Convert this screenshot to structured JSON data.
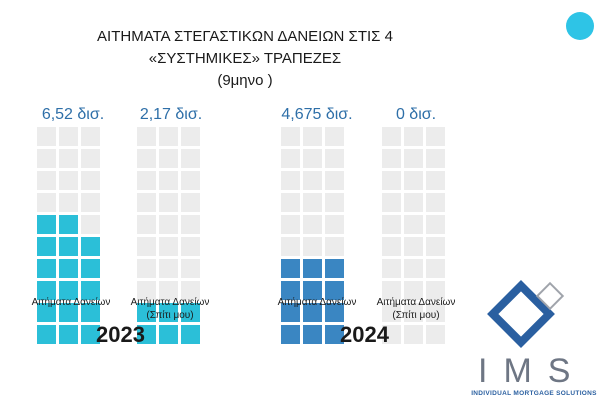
{
  "header": {
    "title_line1": "ΑΙΤΗΜΑΤΑ ΣΤΕΓΑΣΤΙΚΩΝ ΔΑΝΕΙΩΝ ΣΤΙΣ 4",
    "title_line2": "«ΣΥΣΤΗΜΙΚΕΣ» ΤΡΑΠΕΖΕΣ",
    "title_line3": "(9μηνο )"
  },
  "colors": {
    "accent_dot": "#2ec4e6",
    "cyan": "#2bbfd8",
    "blue": "#3a86c2",
    "empty": "#ececec",
    "value_text": "#2e6fa8"
  },
  "chart_data": {
    "type": "waffle",
    "unit": "δισ.",
    "groups": [
      {
        "year": "2023",
        "bars": [
          {
            "label": "6,52 δισ.",
            "value": 6.52,
            "category": [
              "Αιτήματα Δανείων"
            ],
            "color": "#2bbfd8"
          },
          {
            "label": "2,17 δισ.",
            "value": 2.17,
            "category": [
              "Αιτήματα Δανείων",
              "(Σπίτι μου)"
            ],
            "color": "#2bbfd8"
          }
        ]
      },
      {
        "year": "2024",
        "bars": [
          {
            "label": "4,675 δισ.",
            "value": 4.675,
            "category": [
              "Αιτήματα Δανείων"
            ],
            "color": "#3a86c2"
          },
          {
            "label": "0 δισ.",
            "value": 0,
            "category": [
              "Αιτήματα Δανείων",
              "(Σπίτι μου)"
            ],
            "color": "#3a86c2"
          }
        ]
      }
    ]
  },
  "logo": {
    "text": "IMS",
    "subtitle": "INDIVIDUAL MORTGAGE SOLUTIONS"
  }
}
